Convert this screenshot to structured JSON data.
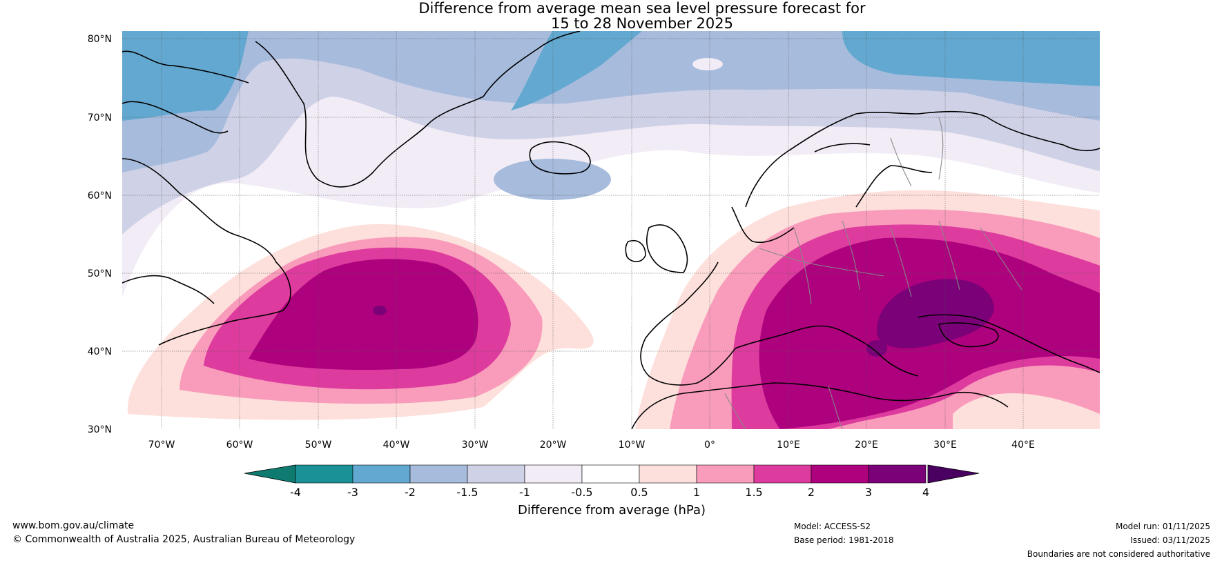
{
  "title": {
    "line1": "Difference from average mean sea level pressure forecast for",
    "line2": "15 to 28 November 2025"
  },
  "map": {
    "lat_labels": [
      "80°N",
      "70°N",
      "60°N",
      "50°N",
      "40°N",
      "30°N"
    ],
    "lon_labels": [
      "70°W",
      "60°W",
      "50°W",
      "40°W",
      "30°W",
      "20°W",
      "10°W",
      "0°",
      "10°E",
      "20°E",
      "30°E",
      "40°E"
    ]
  },
  "colorbar": {
    "ticks": [
      "-4",
      "-3",
      "-2",
      "-1.5",
      "-1",
      "-0.5",
      "0.5",
      "1",
      "1.5",
      "2",
      "3",
      "4"
    ],
    "label": "Difference from average (hPa)",
    "under_color": "#0e7a70",
    "over_color": "#4a0060",
    "colors": [
      "#1a9197",
      "#63a8d0",
      "#a7bbdd",
      "#cfd1e6",
      "#f2ecf6",
      "#ffffff",
      "#fde0dc",
      "#f99cbb",
      "#de3b9e",
      "#ae017e",
      "#7a0177"
    ]
  },
  "footer": {
    "website": "www.bom.gov.au/climate",
    "copyright": "© Commonwealth of Australia 2025, Australian Bureau of Meteorology",
    "model": "Model: ACCESS-S2",
    "base_period": "Base period: 1981-2018",
    "model_run": "Model run: 01/11/2025",
    "issued": "Issued: 03/11/2025",
    "disclaimer": "Boundaries are not considered authoritative"
  }
}
